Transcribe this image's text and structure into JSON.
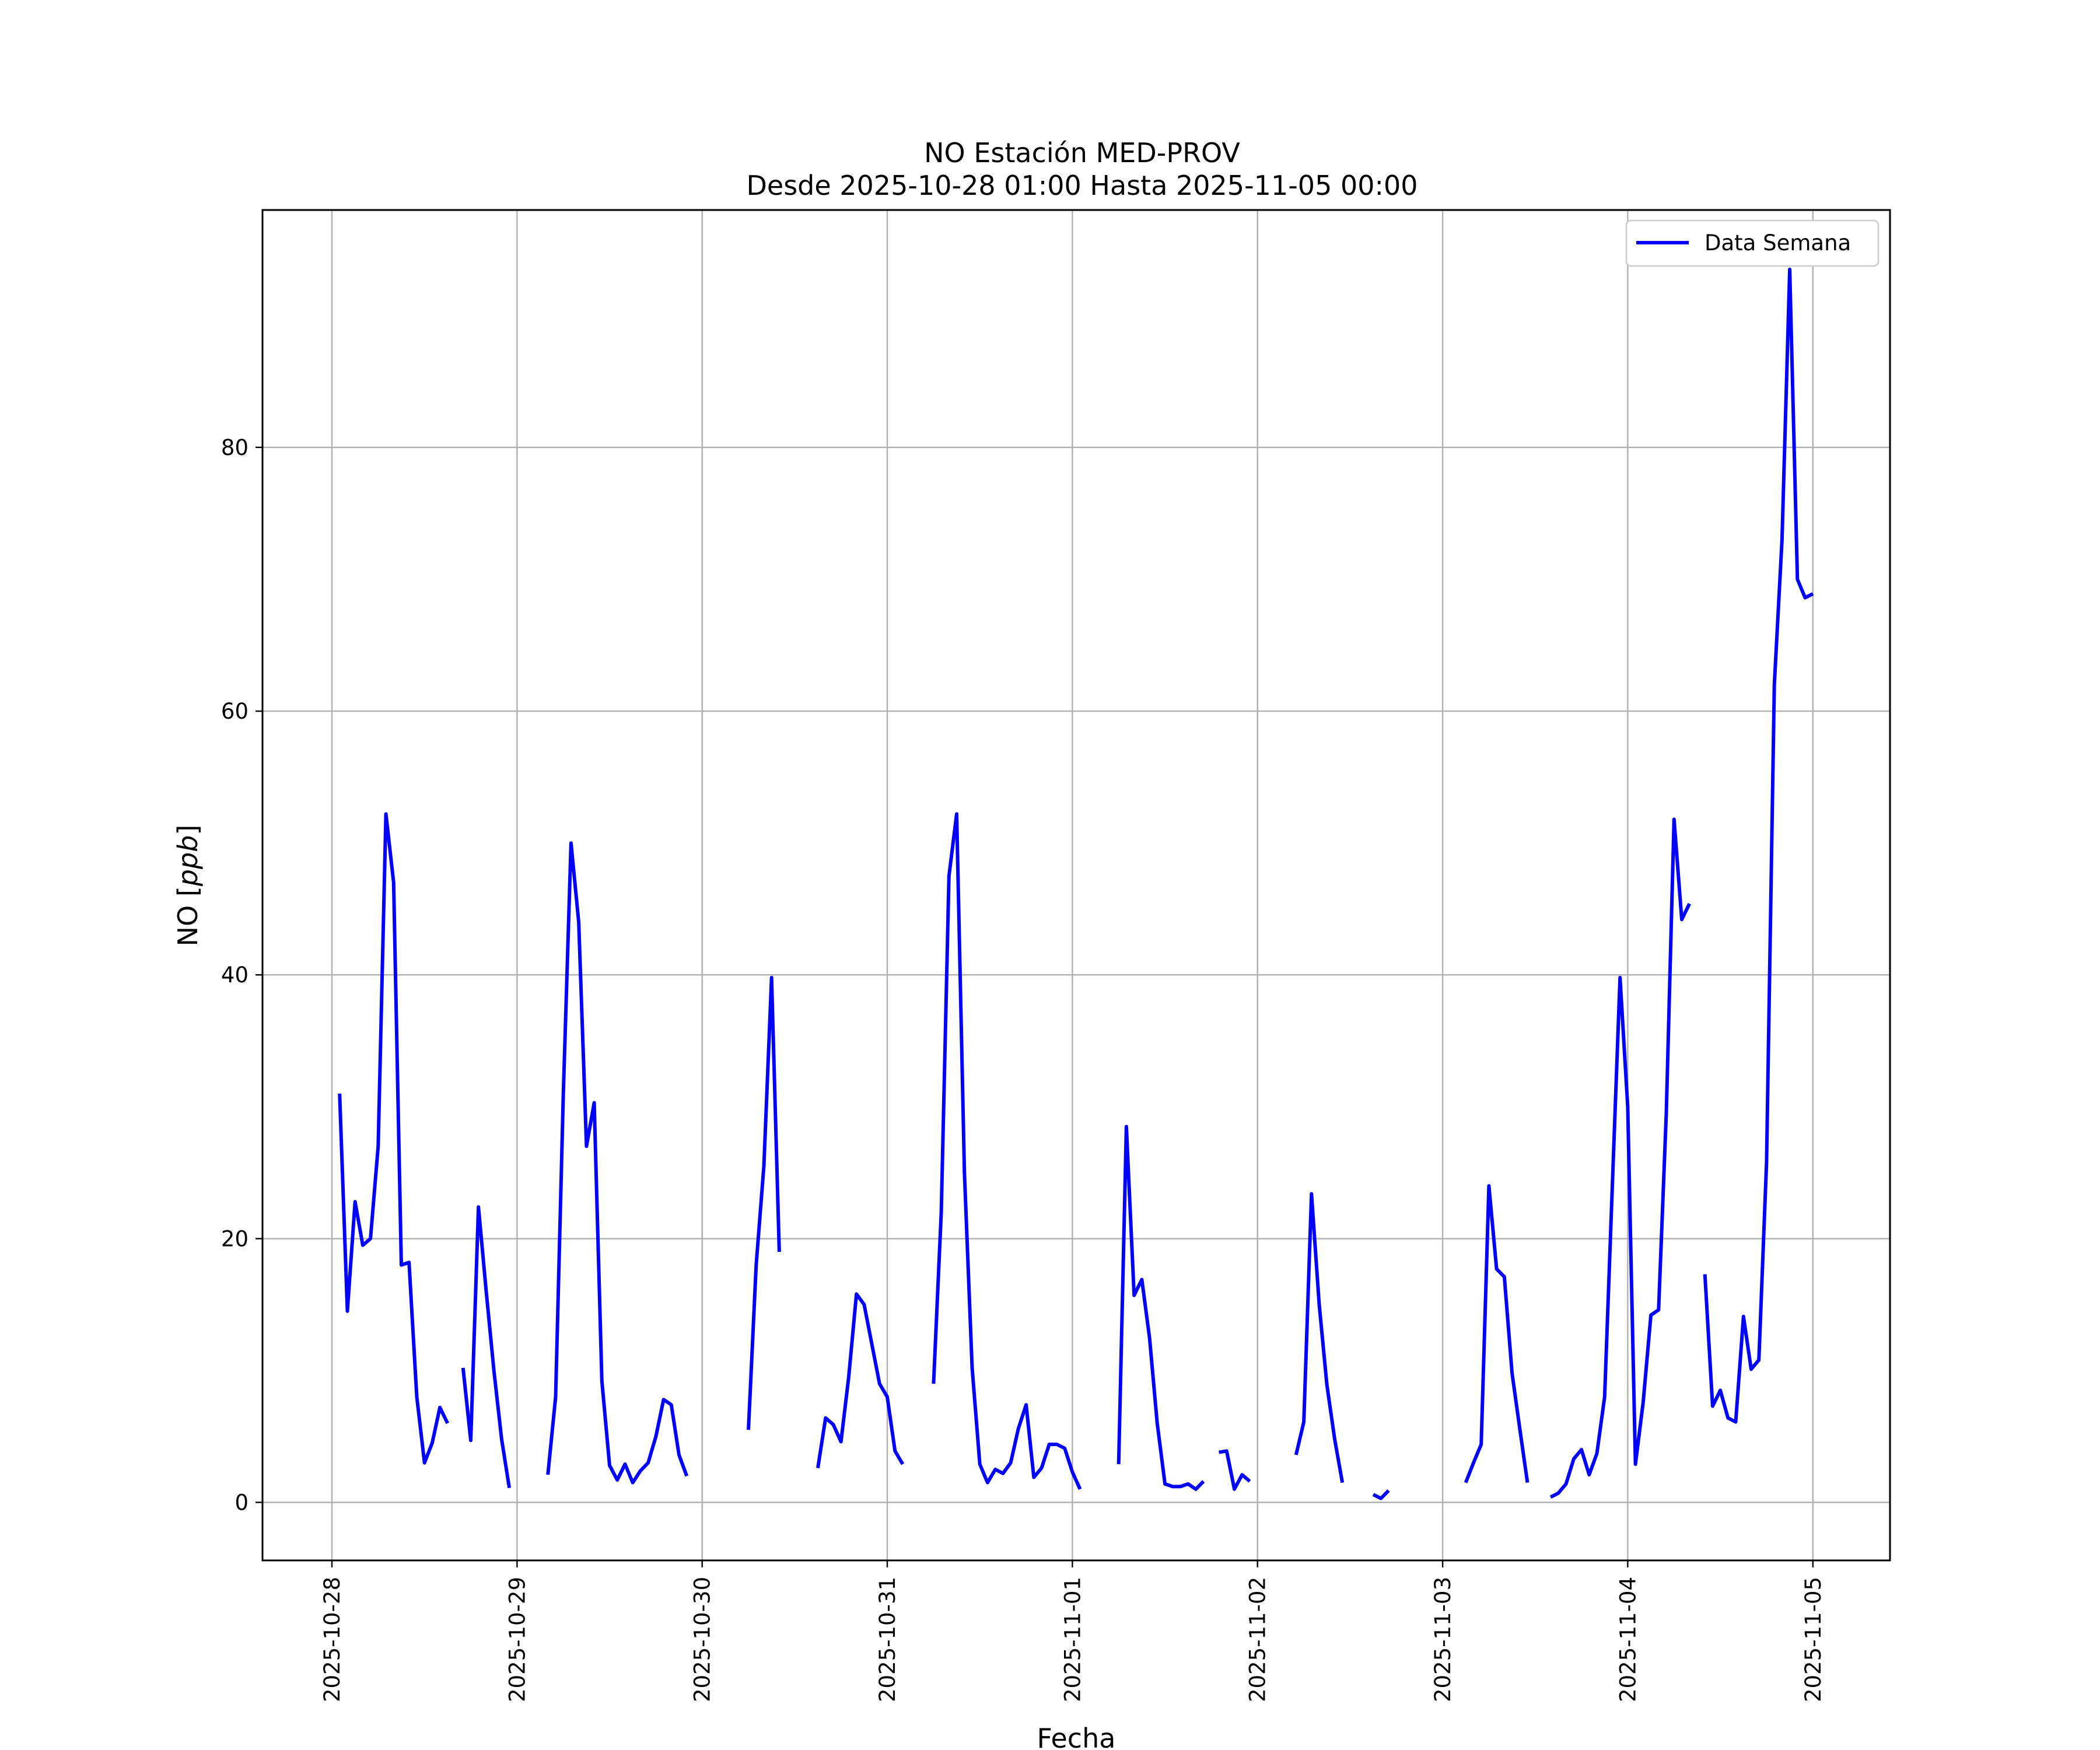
{
  "chart_data": {
    "type": "line",
    "title": "NO Estación MED-PROV",
    "subtitle": "Desde 2025-10-28 01:00 Hasta 2025-11-05 00:00",
    "xlabel": "Fecha",
    "ylabel": "NO [ppb]",
    "xlim": [
      "2025-10-27T15:00",
      "2025-11-05T10:00"
    ],
    "ylim": [
      -4.4,
      98
    ],
    "x_ticks": [
      "2025-10-28",
      "2025-10-29",
      "2025-10-30",
      "2025-10-31",
      "2025-11-01",
      "2025-11-02",
      "2025-11-03",
      "2025-11-04",
      "2025-11-05"
    ],
    "y_ticks": [
      0,
      20,
      40,
      60,
      80
    ],
    "grid": true,
    "legend_position": "top-right",
    "colors": {
      "series": "#0000ff",
      "grid": "#b0b0b0",
      "frame": "#000000"
    },
    "series": [
      {
        "name": "Data Semana",
        "segments": [
          [
            [
              "2025-10-28T01:00",
              31
            ],
            [
              "2025-10-28T02:00",
              14.5
            ],
            [
              "2025-10-28T03:00",
              22.8
            ],
            [
              "2025-10-28T04:00",
              19.5
            ],
            [
              "2025-10-28T05:00",
              20
            ],
            [
              "2025-10-28T06:00",
              27
            ],
            [
              "2025-10-28T07:00",
              52.2
            ],
            [
              "2025-10-28T08:00",
              47
            ],
            [
              "2025-10-28T09:00",
              18
            ],
            [
              "2025-10-28T10:00",
              18.2
            ],
            [
              "2025-10-28T11:00",
              8
            ],
            [
              "2025-10-28T12:00",
              3
            ],
            [
              "2025-10-28T13:00",
              4.5
            ],
            [
              "2025-10-28T14:00",
              7.2
            ],
            [
              "2025-10-28T15:00",
              6
            ]
          ],
          [
            [
              "2025-10-28T17:00",
              10.2
            ],
            [
              "2025-10-28T18:00",
              4.7
            ],
            [
              "2025-10-28T19:00",
              22.4
            ],
            [
              "2025-10-28T20:00",
              16
            ],
            [
              "2025-10-28T21:00",
              10
            ],
            [
              "2025-10-28T22:00",
              4.8
            ],
            [
              "2025-10-28T23:00",
              1.1
            ]
          ],
          [
            [
              "2025-10-29T04:00",
              2.1
            ],
            [
              "2025-10-29T05:00",
              8
            ],
            [
              "2025-10-29T06:00",
              31
            ],
            [
              "2025-10-29T07:00",
              50
            ],
            [
              "2025-10-29T08:00",
              44
            ],
            [
              "2025-10-29T09:00",
              27
            ],
            [
              "2025-10-29T10:00",
              30.3
            ],
            [
              "2025-10-29T11:00",
              9.2
            ],
            [
              "2025-10-29T12:00",
              2.8
            ],
            [
              "2025-10-29T13:00",
              1.7
            ],
            [
              "2025-10-29T14:00",
              2.9
            ],
            [
              "2025-10-29T15:00",
              1.5
            ],
            [
              "2025-10-29T16:00",
              2.4
            ],
            [
              "2025-10-29T17:00",
              3
            ],
            [
              "2025-10-29T18:00",
              5
            ],
            [
              "2025-10-29T19:00",
              7.8
            ],
            [
              "2025-10-29T20:00",
              7.4
            ],
            [
              "2025-10-29T21:00",
              3.6
            ],
            [
              "2025-10-29T22:00",
              2
            ]
          ],
          [
            [
              "2025-10-30T06:00",
              5.5
            ],
            [
              "2025-10-30T07:00",
              18
            ],
            [
              "2025-10-30T08:00",
              25.5
            ],
            [
              "2025-10-30T09:00",
              39.8
            ],
            [
              "2025-10-30T10:00",
              19
            ]
          ],
          [
            [
              "2025-10-30T15:00",
              2.6
            ],
            [
              "2025-10-30T16:00",
              6.4
            ],
            [
              "2025-10-30T17:00",
              5.9
            ],
            [
              "2025-10-30T18:00",
              4.6
            ],
            [
              "2025-10-30T19:00",
              9.5
            ],
            [
              "2025-10-30T20:00",
              15.8
            ],
            [
              "2025-10-30T21:00",
              15
            ],
            [
              "2025-10-30T22:00",
              12
            ],
            [
              "2025-10-30T23:00",
              9
            ],
            [
              "2025-10-31T00:00",
              8
            ],
            [
              "2025-10-31T01:00",
              3.9
            ],
            [
              "2025-10-31T02:00",
              2.9
            ]
          ],
          [
            [
              "2025-10-31T06:00",
              9
            ],
            [
              "2025-10-31T07:00",
              22
            ],
            [
              "2025-10-31T08:00",
              47.5
            ],
            [
              "2025-10-31T09:00",
              52.2
            ],
            [
              "2025-10-31T10:00",
              25
            ],
            [
              "2025-10-31T11:00",
              10.2
            ],
            [
              "2025-10-31T12:00",
              2.9
            ],
            [
              "2025-10-31T13:00",
              1.5
            ],
            [
              "2025-10-31T14:00",
              2.5
            ],
            [
              "2025-10-31T15:00",
              2.2
            ],
            [
              "2025-10-31T16:00",
              3
            ],
            [
              "2025-10-31T17:00",
              5.6
            ],
            [
              "2025-10-31T18:00",
              7.4
            ],
            [
              "2025-10-31T19:00",
              1.9
            ],
            [
              "2025-10-31T20:00",
              2.6
            ],
            [
              "2025-10-31T21:00",
              4.4
            ],
            [
              "2025-10-31T22:00",
              4.4
            ],
            [
              "2025-10-31T23:00",
              4.1
            ],
            [
              "2025-11-01T00:00",
              2.3
            ],
            [
              "2025-11-01T01:00",
              1
            ]
          ],
          [
            [
              "2025-11-01T06:00",
              2.9
            ],
            [
              "2025-11-01T07:00",
              28.5
            ],
            [
              "2025-11-01T08:00",
              15.7
            ],
            [
              "2025-11-01T09:00",
              16.9
            ],
            [
              "2025-11-01T10:00",
              12.5
            ],
            [
              "2025-11-01T11:00",
              6
            ],
            [
              "2025-11-01T12:00",
              1.4
            ],
            [
              "2025-11-01T13:00",
              1.2
            ],
            [
              "2025-11-01T14:00",
              1.2
            ],
            [
              "2025-11-01T15:00",
              1.4
            ],
            [
              "2025-11-01T16:00",
              1
            ],
            [
              "2025-11-01T17:00",
              1.6
            ]
          ],
          [
            [
              "2025-11-01T19:00",
              3.8
            ],
            [
              "2025-11-01T20:00",
              3.9
            ],
            [
              "2025-11-01T21:00",
              1
            ],
            [
              "2025-11-01T22:00",
              2.1
            ],
            [
              "2025-11-01T23:00",
              1.6
            ]
          ],
          [
            [
              "2025-11-02T05:00",
              3.6
            ],
            [
              "2025-11-02T06:00",
              6.1
            ],
            [
              "2025-11-02T07:00",
              23.4
            ],
            [
              "2025-11-02T08:00",
              15
            ],
            [
              "2025-11-02T09:00",
              8.9
            ],
            [
              "2025-11-02T10:00",
              4.8
            ],
            [
              "2025-11-02T11:00",
              1.5
            ]
          ],
          [
            [
              "2025-11-02T15:00",
              0.6
            ],
            [
              "2025-11-02T16:00",
              0.3
            ],
            [
              "2025-11-02T17:00",
              0.9
            ]
          ],
          [
            [
              "2025-11-03T03:00",
              1.5
            ],
            [
              "2025-11-03T04:00",
              3
            ],
            [
              "2025-11-03T05:00",
              4.4
            ],
            [
              "2025-11-03T06:00",
              24
            ],
            [
              "2025-11-03T07:00",
              17.7
            ],
            [
              "2025-11-03T08:00",
              17.1
            ],
            [
              "2025-11-03T09:00",
              9.8
            ],
            [
              "2025-11-03T10:00",
              5.6
            ],
            [
              "2025-11-03T11:00",
              1.5
            ]
          ],
          [
            [
              "2025-11-03T14:00",
              0.4
            ],
            [
              "2025-11-03T15:00",
              0.7
            ],
            [
              "2025-11-03T16:00",
              1.4
            ],
            [
              "2025-11-03T17:00",
              3.3
            ],
            [
              "2025-11-03T18:00",
              4
            ],
            [
              "2025-11-03T19:00",
              2.1
            ],
            [
              "2025-11-03T20:00",
              3.7
            ],
            [
              "2025-11-03T21:00",
              8
            ],
            [
              "2025-11-03T22:00",
              24
            ],
            [
              "2025-11-03T23:00",
              39.8
            ],
            [
              "2025-11-04T00:00",
              30
            ],
            [
              "2025-11-04T01:00",
              2.9
            ],
            [
              "2025-11-04T02:00",
              7.6
            ],
            [
              "2025-11-04T03:00",
              14.2
            ],
            [
              "2025-11-04T04:00",
              14.6
            ],
            [
              "2025-11-04T05:00",
              29.5
            ],
            [
              "2025-11-04T06:00",
              51.8
            ],
            [
              "2025-11-04T07:00",
              44.2
            ],
            [
              "2025-11-04T08:00",
              45.4
            ]
          ],
          [
            [
              "2025-11-04T10:00",
              17.3
            ],
            [
              "2025-11-04T11:00",
              7.3
            ],
            [
              "2025-11-04T12:00",
              8.5
            ],
            [
              "2025-11-04T13:00",
              6.4
            ],
            [
              "2025-11-04T14:00",
              6.1
            ],
            [
              "2025-11-04T15:00",
              14.1
            ],
            [
              "2025-11-04T16:00",
              10.1
            ],
            [
              "2025-11-04T17:00",
              10.8
            ],
            [
              "2025-11-04T18:00",
              25.8
            ],
            [
              "2025-11-04T19:00",
              62
            ],
            [
              "2025-11-04T20:00",
              73
            ],
            [
              "2025-11-04T21:00",
              93.5
            ],
            [
              "2025-11-04T22:00",
              70
            ],
            [
              "2025-11-04T23:00",
              68.6
            ],
            [
              "2025-11-05T00:00",
              68.9
            ]
          ]
        ]
      }
    ]
  }
}
